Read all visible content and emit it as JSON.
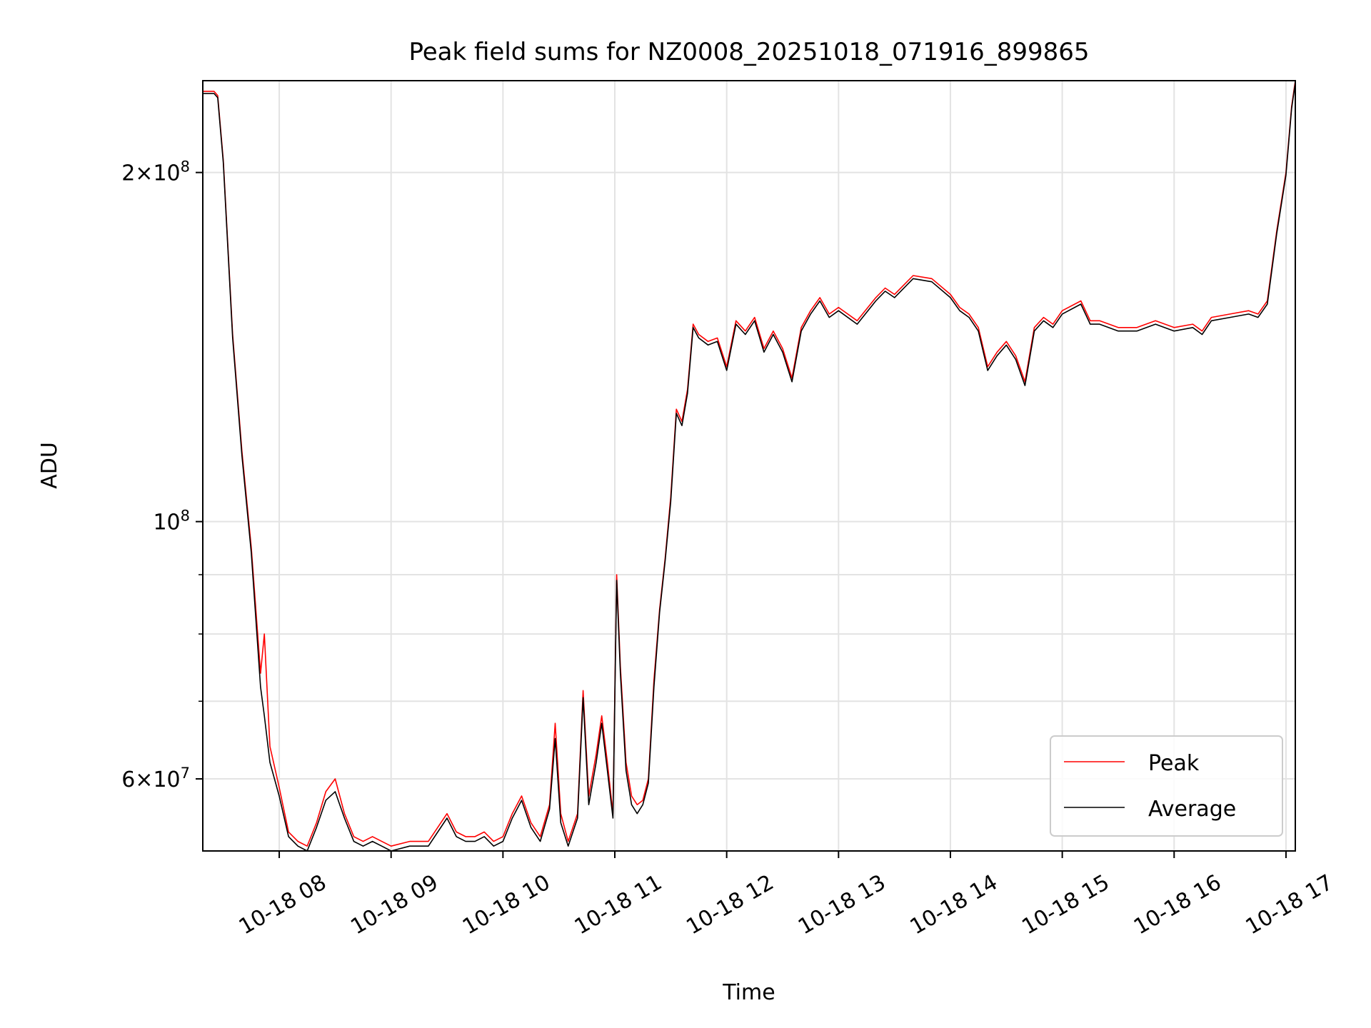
{
  "chart_data": {
    "type": "line",
    "title": "Peak field sums for NZ0008_20251018_071916_899865",
    "xlabel": "Time",
    "ylabel": "ADU",
    "x_scale": "time",
    "y_scale": "log",
    "xlim": [
      "2025-10-18 07:19",
      "2025-10-18 17:05"
    ],
    "ylim": [
      52000000,
      240000000
    ],
    "grid": true,
    "legend_position": "lower-right",
    "x_ticks": [
      {
        "value": "2025-10-18 08:00",
        "label": "10-18 08"
      },
      {
        "value": "2025-10-18 09:00",
        "label": "10-18 09"
      },
      {
        "value": "2025-10-18 10:00",
        "label": "10-18 10"
      },
      {
        "value": "2025-10-18 11:00",
        "label": "10-18 11"
      },
      {
        "value": "2025-10-18 12:00",
        "label": "10-18 12"
      },
      {
        "value": "2025-10-18 13:00",
        "label": "10-18 13"
      },
      {
        "value": "2025-10-18 14:00",
        "label": "10-18 14"
      },
      {
        "value": "2025-10-18 15:00",
        "label": "10-18 15"
      },
      {
        "value": "2025-10-18 16:00",
        "label": "10-18 16"
      },
      {
        "value": "2025-10-18 17:00",
        "label": "10-18 17"
      }
    ],
    "y_ticks_major": [
      {
        "value": 200000000,
        "mantissa": "2",
        "exponent": "8"
      },
      {
        "value": 100000000,
        "mantissa": "",
        "exponent": "8"
      },
      {
        "value": 60000000,
        "mantissa": "6",
        "exponent": "7"
      }
    ],
    "y_ticks_minor": [
      300000000,
      90000000,
      80000000,
      70000000,
      50000000
    ],
    "series": [
      {
        "name": "Peak",
        "color": "#ff0000",
        "x": [
          "2025-10-18 07:19",
          "2025-10-18 07:25",
          "2025-10-18 07:27",
          "2025-10-18 07:30",
          "2025-10-18 07:35",
          "2025-10-18 07:40",
          "2025-10-18 07:45",
          "2025-10-18 07:50",
          "2025-10-18 07:52",
          "2025-10-18 07:55",
          "2025-10-18 08:00",
          "2025-10-18 08:05",
          "2025-10-18 08:10",
          "2025-10-18 08:15",
          "2025-10-18 08:20",
          "2025-10-18 08:25",
          "2025-10-18 08:30",
          "2025-10-18 08:35",
          "2025-10-18 08:40",
          "2025-10-18 08:45",
          "2025-10-18 08:50",
          "2025-10-18 08:55",
          "2025-10-18 09:00",
          "2025-10-18 09:10",
          "2025-10-18 09:20",
          "2025-10-18 09:30",
          "2025-10-18 09:35",
          "2025-10-18 09:40",
          "2025-10-18 09:45",
          "2025-10-18 09:50",
          "2025-10-18 09:55",
          "2025-10-18 10:00",
          "2025-10-18 10:05",
          "2025-10-18 10:10",
          "2025-10-18 10:15",
          "2025-10-18 10:20",
          "2025-10-18 10:25",
          "2025-10-18 10:28",
          "2025-10-18 10:31",
          "2025-10-18 10:35",
          "2025-10-18 10:40",
          "2025-10-18 10:43",
          "2025-10-18 10:46",
          "2025-10-18 10:50",
          "2025-10-18 10:53",
          "2025-10-18 10:56",
          "2025-10-18 10:59",
          "2025-10-18 11:01",
          "2025-10-18 11:03",
          "2025-10-18 11:06",
          "2025-10-18 11:09",
          "2025-10-18 11:12",
          "2025-10-18 11:15",
          "2025-10-18 11:18",
          "2025-10-18 11:21",
          "2025-10-18 11:24",
          "2025-10-18 11:27",
          "2025-10-18 11:30",
          "2025-10-18 11:33",
          "2025-10-18 11:36",
          "2025-10-18 11:39",
          "2025-10-18 11:42",
          "2025-10-18 11:45",
          "2025-10-18 11:50",
          "2025-10-18 11:55",
          "2025-10-18 12:00",
          "2025-10-18 12:05",
          "2025-10-18 12:10",
          "2025-10-18 12:15",
          "2025-10-18 12:20",
          "2025-10-18 12:25",
          "2025-10-18 12:30",
          "2025-10-18 12:35",
          "2025-10-18 12:40",
          "2025-10-18 12:45",
          "2025-10-18 12:50",
          "2025-10-18 12:55",
          "2025-10-18 13:00",
          "2025-10-18 13:10",
          "2025-10-18 13:20",
          "2025-10-18 13:25",
          "2025-10-18 13:30",
          "2025-10-18 13:40",
          "2025-10-18 13:50",
          "2025-10-18 14:00",
          "2025-10-18 14:05",
          "2025-10-18 14:10",
          "2025-10-18 14:15",
          "2025-10-18 14:20",
          "2025-10-18 14:25",
          "2025-10-18 14:30",
          "2025-10-18 14:35",
          "2025-10-18 14:40",
          "2025-10-18 14:45",
          "2025-10-18 14:50",
          "2025-10-18 14:55",
          "2025-10-18 15:00",
          "2025-10-18 15:10",
          "2025-10-18 15:15",
          "2025-10-18 15:20",
          "2025-10-18 15:30",
          "2025-10-18 15:40",
          "2025-10-18 15:50",
          "2025-10-18 16:00",
          "2025-10-18 16:10",
          "2025-10-18 16:15",
          "2025-10-18 16:20",
          "2025-10-18 16:30",
          "2025-10-18 16:40",
          "2025-10-18 16:45",
          "2025-10-18 16:50",
          "2025-10-18 16:55",
          "2025-10-18 17:00",
          "2025-10-18 17:03",
          "2025-10-18 17:05"
        ],
        "y": [
          235000000,
          235000000,
          233000000,
          205000000,
          145000000,
          115000000,
          95000000,
          74000000,
          80000000,
          64000000,
          59000000,
          54000000,
          53000000,
          52500000,
          55000000,
          58500000,
          60000000,
          56000000,
          53500000,
          53000000,
          53500000,
          53000000,
          52500000,
          53000000,
          53000000,
          56000000,
          54000000,
          53500000,
          53500000,
          54000000,
          53000000,
          53500000,
          56000000,
          58000000,
          55000000,
          53500000,
          57000000,
          67000000,
          56000000,
          53000000,
          56000000,
          71500000,
          58000000,
          63000000,
          68000000,
          62000000,
          56000000,
          90000000,
          75000000,
          62000000,
          58000000,
          57000000,
          57500000,
          60000000,
          73000000,
          84000000,
          93000000,
          105000000,
          125000000,
          122000000,
          130000000,
          148000000,
          145000000,
          143000000,
          144000000,
          136000000,
          149000000,
          146000000,
          150000000,
          141000000,
          146000000,
          141000000,
          133000000,
          147000000,
          152000000,
          156000000,
          151000000,
          153000000,
          149000000,
          156000000,
          159000000,
          157000000,
          163000000,
          162000000,
          157000000,
          153000000,
          151000000,
          147000000,
          136000000,
          140000000,
          143000000,
          139000000,
          132000000,
          147000000,
          150000000,
          148000000,
          152000000,
          155000000,
          149000000,
          149000000,
          147000000,
          147000000,
          149000000,
          147000000,
          148000000,
          146000000,
          150000000,
          151000000,
          152000000,
          151000000,
          155000000,
          178000000,
          200000000,
          228000000,
          240000000
        ]
      },
      {
        "name": "Average",
        "color": "#000000",
        "x": [
          "2025-10-18 07:19",
          "2025-10-18 07:25",
          "2025-10-18 07:27",
          "2025-10-18 07:30",
          "2025-10-18 07:35",
          "2025-10-18 07:40",
          "2025-10-18 07:45",
          "2025-10-18 07:50",
          "2025-10-18 07:52",
          "2025-10-18 07:55",
          "2025-10-18 08:00",
          "2025-10-18 08:05",
          "2025-10-18 08:10",
          "2025-10-18 08:15",
          "2025-10-18 08:20",
          "2025-10-18 08:25",
          "2025-10-18 08:30",
          "2025-10-18 08:35",
          "2025-10-18 08:40",
          "2025-10-18 08:45",
          "2025-10-18 08:50",
          "2025-10-18 08:55",
          "2025-10-18 09:00",
          "2025-10-18 09:10",
          "2025-10-18 09:20",
          "2025-10-18 09:30",
          "2025-10-18 09:35",
          "2025-10-18 09:40",
          "2025-10-18 09:45",
          "2025-10-18 09:50",
          "2025-10-18 09:55",
          "2025-10-18 10:00",
          "2025-10-18 10:05",
          "2025-10-18 10:10",
          "2025-10-18 10:15",
          "2025-10-18 10:20",
          "2025-10-18 10:25",
          "2025-10-18 10:28",
          "2025-10-18 10:31",
          "2025-10-18 10:35",
          "2025-10-18 10:40",
          "2025-10-18 10:43",
          "2025-10-18 10:46",
          "2025-10-18 10:50",
          "2025-10-18 10:53",
          "2025-10-18 10:56",
          "2025-10-18 10:59",
          "2025-10-18 11:01",
          "2025-10-18 11:03",
          "2025-10-18 11:06",
          "2025-10-18 11:09",
          "2025-10-18 11:12",
          "2025-10-18 11:15",
          "2025-10-18 11:18",
          "2025-10-18 11:21",
          "2025-10-18 11:24",
          "2025-10-18 11:27",
          "2025-10-18 11:30",
          "2025-10-18 11:33",
          "2025-10-18 11:36",
          "2025-10-18 11:39",
          "2025-10-18 11:42",
          "2025-10-18 11:45",
          "2025-10-18 11:50",
          "2025-10-18 11:55",
          "2025-10-18 12:00",
          "2025-10-18 12:05",
          "2025-10-18 12:10",
          "2025-10-18 12:15",
          "2025-10-18 12:20",
          "2025-10-18 12:25",
          "2025-10-18 12:30",
          "2025-10-18 12:35",
          "2025-10-18 12:40",
          "2025-10-18 12:45",
          "2025-10-18 12:50",
          "2025-10-18 12:55",
          "2025-10-18 13:00",
          "2025-10-18 13:10",
          "2025-10-18 13:20",
          "2025-10-18 13:25",
          "2025-10-18 13:30",
          "2025-10-18 13:40",
          "2025-10-18 13:50",
          "2025-10-18 14:00",
          "2025-10-18 14:05",
          "2025-10-18 14:10",
          "2025-10-18 14:15",
          "2025-10-18 14:20",
          "2025-10-18 14:25",
          "2025-10-18 14:30",
          "2025-10-18 14:35",
          "2025-10-18 14:40",
          "2025-10-18 14:45",
          "2025-10-18 14:50",
          "2025-10-18 14:55",
          "2025-10-18 15:00",
          "2025-10-18 15:10",
          "2025-10-18 15:15",
          "2025-10-18 15:20",
          "2025-10-18 15:30",
          "2025-10-18 15:40",
          "2025-10-18 15:50",
          "2025-10-18 16:00",
          "2025-10-18 16:10",
          "2025-10-18 16:15",
          "2025-10-18 16:20",
          "2025-10-18 16:30",
          "2025-10-18 16:40",
          "2025-10-18 16:45",
          "2025-10-18 16:50",
          "2025-10-18 16:55",
          "2025-10-18 17:00",
          "2025-10-18 17:03",
          "2025-10-18 17:05"
        ],
        "y": [
          234000000,
          234000000,
          232000000,
          204000000,
          144000000,
          114000000,
          94000000,
          72000000,
          68000000,
          62000000,
          58000000,
          53500000,
          52500000,
          52000000,
          54500000,
          57500000,
          58500000,
          55500000,
          53000000,
          52500000,
          53000000,
          52500000,
          52000000,
          52500000,
          52500000,
          55500000,
          53500000,
          53000000,
          53000000,
          53500000,
          52500000,
          53000000,
          55500000,
          57500000,
          54500000,
          53000000,
          56500000,
          65000000,
          55000000,
          52500000,
          55500000,
          70500000,
          57000000,
          62000000,
          67000000,
          61000000,
          55500000,
          89000000,
          74000000,
          61000000,
          57000000,
          56000000,
          57000000,
          59500000,
          72000000,
          83500000,
          92500000,
          104000000,
          124000000,
          121000000,
          129000000,
          147000000,
          144000000,
          142000000,
          143000000,
          135000000,
          148000000,
          145000000,
          149000000,
          140000000,
          145000000,
          140000000,
          132000000,
          146000000,
          151000000,
          155000000,
          150000000,
          152000000,
          148000000,
          155000000,
          158000000,
          156000000,
          162000000,
          161000000,
          156000000,
          152000000,
          150000000,
          146000000,
          135000000,
          139000000,
          142000000,
          138000000,
          131000000,
          146000000,
          149000000,
          147000000,
          151000000,
          154000000,
          148000000,
          148000000,
          146000000,
          146000000,
          148000000,
          146000000,
          147000000,
          145000000,
          149000000,
          150000000,
          151000000,
          150000000,
          154000000,
          177000000,
          199000000,
          227000000,
          239000000
        ]
      }
    ]
  }
}
